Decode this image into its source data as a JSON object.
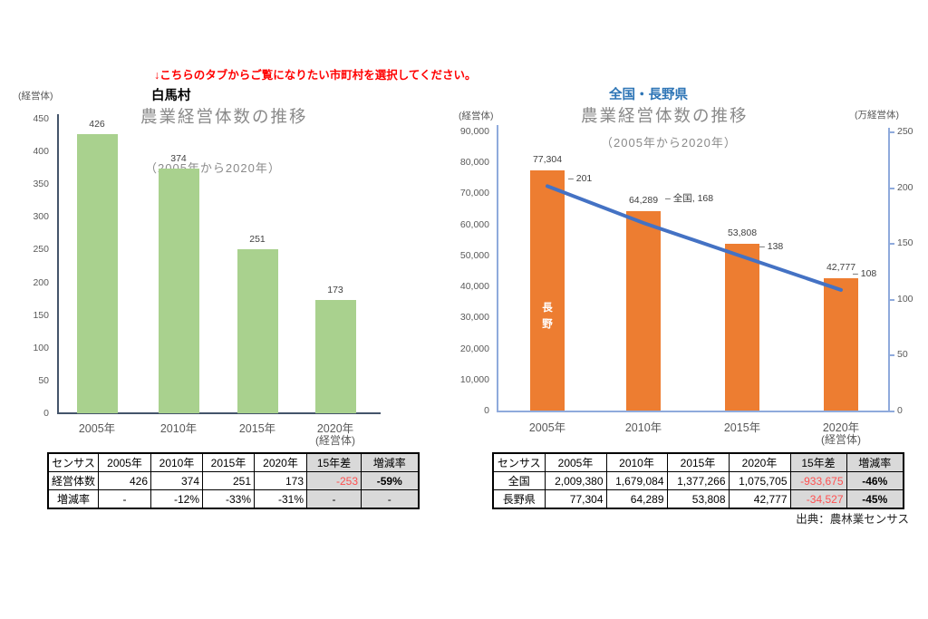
{
  "note": "↓こちらのタブからご覧になりたい市町村を選択してください。",
  "source": "出典：農林業センサス",
  "colors": {
    "bar_green": "#a9d18e",
    "bar_orange": "#ed7d31",
    "line_blue": "#4472c4",
    "title_blue": "#2e75b6",
    "note_red": "#ff0000",
    "diff_red": "#ff5050",
    "cell_gray": "#d9d9d9"
  },
  "chart_data": [
    {
      "type": "bar",
      "region_title": "白馬村",
      "title": "農業経営体数の推移",
      "subtitle": "（2005年から2020年）",
      "y_unit": "(経営体)",
      "x_note": "(経営体)",
      "categories": [
        "2005年",
        "2010年",
        "2015年",
        "2020年"
      ],
      "values": [
        426,
        374,
        251,
        173
      ],
      "value_labels": [
        "426",
        "374",
        "251",
        "173"
      ],
      "ylim": [
        0,
        450
      ],
      "yticks": [
        "450",
        "400",
        "350",
        "300",
        "250",
        "200",
        "150",
        "100",
        "50",
        "0"
      ],
      "grid": false,
      "legend": "none"
    },
    {
      "type": "bar+line",
      "region_title": "全国・長野県",
      "title": "農業経営体数の推移",
      "subtitle": "（2005年から2020年）",
      "y_unit_left": "(経営体)",
      "y_unit_right": "(万経営体)",
      "x_note": "(経営体)",
      "categories": [
        "2005年",
        "2010年",
        "2015年",
        "2020年"
      ],
      "series": [
        {
          "name": "長野",
          "type": "bar",
          "axis": "left",
          "values": [
            77304,
            64289,
            53808,
            42777
          ],
          "value_labels": [
            "77,304",
            "64,289",
            "53,808",
            "42,777"
          ],
          "bar_text": "長野"
        },
        {
          "name": "全国",
          "type": "line",
          "axis": "right",
          "values": [
            201,
            168,
            138,
            108
          ],
          "point_labels": [
            "– 201",
            "– 全国, 168",
            "– 138",
            "– 108"
          ]
        }
      ],
      "ylim_left": [
        0,
        90000
      ],
      "yticks_left": [
        "90,000",
        "80,000",
        "70,000",
        "60,000",
        "50,000",
        "40,000",
        "30,000",
        "20,000",
        "10,000",
        "0"
      ],
      "ylim_right": [
        0,
        250
      ],
      "yticks_right": [
        "250",
        "200",
        "150",
        "100",
        "50",
        "0"
      ],
      "grid": false,
      "legend": "none"
    }
  ],
  "tables": [
    {
      "header": [
        "センサス",
        "2005年",
        "2010年",
        "2015年",
        "2020年",
        "15年差",
        "増減率"
      ],
      "rows": [
        {
          "label": "経営体数",
          "values": [
            "426",
            "374",
            "251",
            "173"
          ],
          "diff": "-253",
          "rate": "-59%"
        },
        {
          "label": "増減率",
          "values": [
            "-",
            "-12%",
            "-33%",
            "-31%"
          ],
          "diff": "-",
          "rate": "-"
        }
      ]
    },
    {
      "header": [
        "センサス",
        "2005年",
        "2010年",
        "2015年",
        "2020年",
        "15年差",
        "増減率"
      ],
      "rows": [
        {
          "label": "全国",
          "values": [
            "2,009,380",
            "1,679,084",
            "1,377,266",
            "1,075,705"
          ],
          "diff": "-933,675",
          "rate": "-46%"
        },
        {
          "label": "長野県",
          "values": [
            "77,304",
            "64,289",
            "53,808",
            "42,777"
          ],
          "diff": "-34,527",
          "rate": "-45%"
        }
      ]
    }
  ]
}
